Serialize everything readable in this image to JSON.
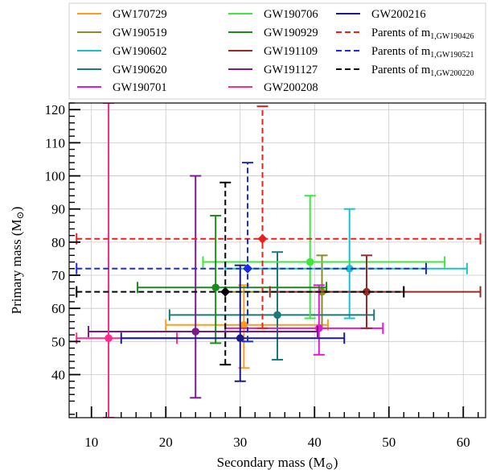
{
  "chart_data": {
    "type": "scatter",
    "title": "",
    "xlabel": "Secondary mass (M",
    "ylabel": "Primary mass (M",
    "unit_symbol": "⊙",
    "unit_close": ")",
    "xlim": [
      7,
      63
    ],
    "ylim": [
      27,
      122
    ],
    "x_ticks": [
      10,
      20,
      30,
      40,
      50,
      60
    ],
    "y_ticks": [
      40,
      50,
      60,
      70,
      80,
      90,
      100,
      110,
      120
    ],
    "x_tick_labels": [
      "10",
      "20",
      "30",
      "40",
      "50",
      "60"
    ],
    "y_tick_labels": [
      "40",
      "50",
      "60",
      "70",
      "80",
      "90",
      "100",
      "110",
      "120"
    ],
    "grid": true,
    "legend_placement": "top, above plot",
    "series": [
      {
        "name": "GW170729",
        "color": "#ff9a1e",
        "style": "solid",
        "x": 30.5,
        "x_err": [
          20.0,
          41.8
        ],
        "y": 55,
        "y_err": [
          42,
          67
        ]
      },
      {
        "name": "GW190519",
        "color": "#8b8b2a",
        "style": "solid",
        "x": 41.0,
        "x_err": [
          28.0,
          52.0
        ],
        "y": 65,
        "y_err": [
          54,
          76
        ]
      },
      {
        "name": "GW190602",
        "color": "#17c3c8",
        "style": "solid",
        "x": 44.7,
        "x_err": [
          28.0,
          60.5
        ],
        "y": 72,
        "y_err": [
          57,
          90
        ]
      },
      {
        "name": "GW190620",
        "color": "#1a7a7a",
        "style": "solid",
        "x": 35.0,
        "x_err": [
          20.5,
          48.0
        ],
        "y": 58,
        "y_err": [
          44.5,
          77
        ]
      },
      {
        "name": "GW190701",
        "color": "#e01ad1",
        "style": "solid",
        "x": 40.6,
        "x_err": [
          28.0,
          49.2
        ],
        "y": 54,
        "y_err": [
          46,
          67
        ]
      },
      {
        "name": "GW190706",
        "color": "#3be83b",
        "style": "solid",
        "x": 39.4,
        "x_err": [
          25.0,
          57.5
        ],
        "y": 74,
        "y_err": [
          57,
          94
        ]
      },
      {
        "name": "GW190929",
        "color": "#1a8a1a",
        "style": "solid",
        "x": 26.7,
        "x_err": [
          16.2,
          41.6
        ],
        "y": 66.3,
        "y_err": [
          49.5,
          88
        ]
      },
      {
        "name": "GW191109",
        "color": "#9a2a2a",
        "style": "solid",
        "x": 47.0,
        "x_err": [
          34.0,
          62.3
        ],
        "y": 65,
        "y_err": [
          54,
          76
        ]
      },
      {
        "name": "GW191127",
        "color": "#7a1a8a",
        "style": "solid",
        "x": 24.0,
        "x_err": [
          9.6,
          40.4
        ],
        "y": 53,
        "y_err": [
          33,
          100
        ]
      },
      {
        "name": "GW200208",
        "color": "#ff2a8a",
        "style": "solid",
        "x": 12.3,
        "x_err": [
          8.0,
          21.5
        ],
        "y": 51,
        "y_err": [
          27,
          122
        ]
      },
      {
        "name": "GW200216",
        "color": "#1a1a8a",
        "style": "solid",
        "x": 30.0,
        "x_err": [
          14.0,
          44.0
        ],
        "y": 51,
        "y_err": [
          38,
          73
        ]
      },
      {
        "name": "Parents of m",
        "name_sub": "1,GW190426",
        "color": "#e82020",
        "style": "dashed",
        "x": 33.0,
        "x_err": [
          8.0,
          62.3
        ],
        "y": 81,
        "y_err": [
          54,
          121
        ]
      },
      {
        "name": "Parents of m",
        "name_sub": "1,GW190521",
        "color": "#1a2ae8",
        "style": "dashed",
        "x": 31.0,
        "x_err": [
          8.0,
          55.0
        ],
        "y": 72,
        "y_err": [
          50,
          104
        ]
      },
      {
        "name": "Parents of m",
        "name_sub": "1,GW200220",
        "color": "#000000",
        "style": "dashed",
        "x": 28.0,
        "x_err": [
          8.0,
          52.0
        ],
        "y": 65,
        "y_err": [
          43,
          98
        ]
      }
    ]
  }
}
